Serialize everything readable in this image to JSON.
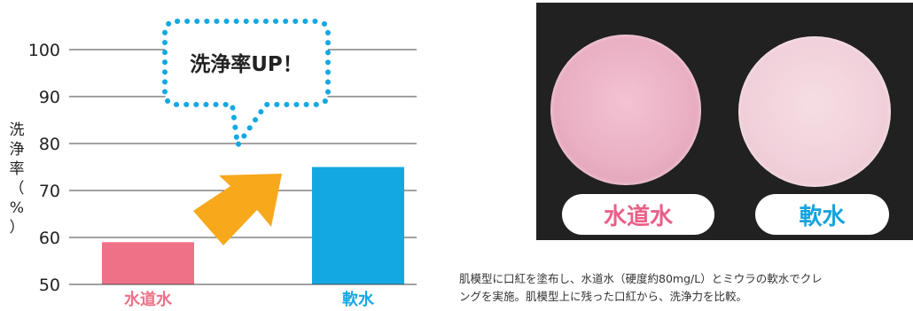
{
  "chart_data": {
    "type": "bar",
    "categories": [
      "水道水",
      "軟水"
    ],
    "values": [
      59,
      75
    ],
    "ylim": [
      50,
      100
    ],
    "yticks": [
      50,
      60,
      70,
      80,
      90,
      100
    ],
    "ylabel": "洗浄率（％）",
    "ylabel_chars": [
      "洗",
      "浄",
      "率",
      "（",
      "%",
      "）"
    ],
    "grid": true,
    "colors": [
      "#ef7187",
      "#13a8e2"
    ],
    "callout": "洗浄率UP！",
    "callout_color": "#13a8e2",
    "arrow_color": "#f7a81b"
  },
  "photo": {
    "label_left": "水道水",
    "label_right": "軟水"
  },
  "caption": {
    "line1": "肌模型に口紅を塗布し、水道水（硬度約80mg/L）とミウラの軟水でクレ",
    "line2": "ングを実施。肌模型上に残った口紅から、洗浄力を比較。"
  }
}
